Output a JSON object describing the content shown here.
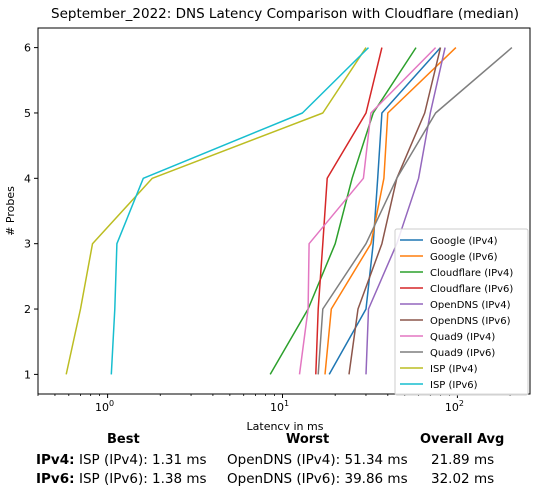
{
  "chart_data": {
    "type": "line",
    "title": "September_2022: DNS Latency Comparison with Cloudflare (median)",
    "xlabel": "Latency in ms",
    "ylabel": "# Probes",
    "xscale": "log",
    "xlim": [
      0.4,
      260
    ],
    "ylim": [
      0.7,
      6.3
    ],
    "x_ticks": [
      1,
      10,
      100
    ],
    "x_tick_labels": [
      "10^0",
      "10^1",
      "10^2"
    ],
    "y_ticks": [
      1,
      2,
      3,
      4,
      5,
      6
    ],
    "grid": false,
    "legend_position": "lower-right",
    "series": [
      {
        "name": "Google (IPv4)",
        "color": "#1f77b4",
        "points": [
          [
            18.5,
            1
          ],
          [
            30,
            2
          ],
          [
            33,
            3
          ],
          [
            35,
            4
          ],
          [
            37,
            5
          ],
          [
            80,
            6
          ]
        ]
      },
      {
        "name": "Google (IPv6)",
        "color": "#ff7f0e",
        "points": [
          [
            17.5,
            1
          ],
          [
            19,
            2
          ],
          [
            32,
            3
          ],
          [
            38,
            4
          ],
          [
            40,
            5
          ],
          [
            98,
            6
          ]
        ]
      },
      {
        "name": "Cloudflare (IPv4)",
        "color": "#2ca02c",
        "points": [
          [
            8.5,
            1
          ],
          [
            14,
            2
          ],
          [
            20,
            3
          ],
          [
            25,
            4
          ],
          [
            33,
            5
          ],
          [
            58,
            6
          ]
        ]
      },
      {
        "name": "Cloudflare (IPv6)",
        "color": "#d62728",
        "points": [
          [
            15.5,
            1
          ],
          [
            16,
            2
          ],
          [
            17,
            3
          ],
          [
            18,
            4
          ],
          [
            30,
            5
          ],
          [
            37,
            6
          ]
        ]
      },
      {
        "name": "OpenDNS (IPv4)",
        "color": "#9467bd",
        "points": [
          [
            30,
            1
          ],
          [
            31,
            2
          ],
          [
            45,
            3
          ],
          [
            60,
            4
          ],
          [
            70,
            5
          ],
          [
            85,
            6
          ]
        ]
      },
      {
        "name": "OpenDNS (IPv6)",
        "color": "#8c564b",
        "points": [
          [
            24,
            1
          ],
          [
            27,
            2
          ],
          [
            37,
            3
          ],
          [
            45,
            4
          ],
          [
            65,
            5
          ],
          [
            80,
            6
          ]
        ]
      },
      {
        "name": "Quad9 (IPv4)",
        "color": "#e377c2",
        "points": [
          [
            12.5,
            1
          ],
          [
            14,
            2
          ],
          [
            14.2,
            3
          ],
          [
            29,
            4
          ],
          [
            32,
            5
          ],
          [
            75,
            6
          ]
        ]
      },
      {
        "name": "Quad9 (IPv6)",
        "color": "#7f7f7f",
        "points": [
          [
            16,
            1
          ],
          [
            17,
            2
          ],
          [
            30,
            3
          ],
          [
            45,
            4
          ],
          [
            75,
            5
          ],
          [
            205,
            6
          ]
        ]
      },
      {
        "name": "ISP (IPv4)",
        "color": "#bcbd22",
        "points": [
          [
            0.58,
            1
          ],
          [
            0.7,
            2
          ],
          [
            0.82,
            3
          ],
          [
            1.8,
            4
          ],
          [
            17,
            5
          ],
          [
            30,
            6
          ]
        ]
      },
      {
        "name": "ISP (IPv6)",
        "color": "#17becf",
        "points": [
          [
            1.05,
            1
          ],
          [
            1.1,
            2
          ],
          [
            1.13,
            3
          ],
          [
            1.6,
            4
          ],
          [
            13,
            5
          ],
          [
            31,
            6
          ]
        ]
      }
    ]
  },
  "summary": {
    "headers": {
      "best": "Best",
      "worst": "Worst",
      "avg": "Overall Avg"
    },
    "rows": [
      {
        "proto": "IPv4:",
        "best": "ISP (IPv4): 1.31 ms",
        "worst": "OpenDNS (IPv4): 51.34 ms",
        "avg": "21.89 ms"
      },
      {
        "proto": "IPv6:",
        "best": "ISP (IPv6): 1.38 ms",
        "worst": "OpenDNS (IPv6): 39.86 ms",
        "avg": "32.02 ms"
      }
    ]
  }
}
